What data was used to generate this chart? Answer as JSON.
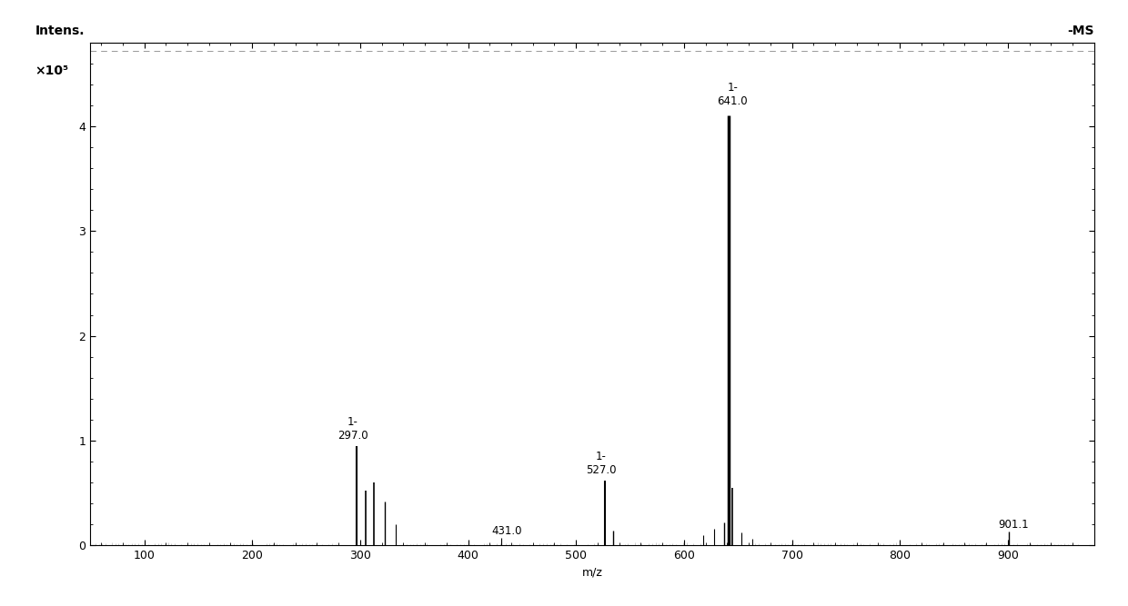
{
  "title": "-MS",
  "xlabel": "m/z",
  "xlim": [
    50,
    980
  ],
  "ylim": [
    0,
    4.8
  ],
  "xticks": [
    100,
    200,
    300,
    400,
    500,
    600,
    700,
    800,
    900
  ],
  "yticks": [
    0,
    1,
    2,
    3,
    4
  ],
  "background_color": "#ffffff",
  "peaks": [
    {
      "mz": 297.0,
      "intensity": 0.95,
      "label": "1-\n297.0",
      "labeled": true,
      "lw": 1.5
    },
    {
      "mz": 305.0,
      "intensity": 0.52,
      "label": "",
      "labeled": false,
      "lw": 1.2
    },
    {
      "mz": 313.0,
      "intensity": 0.6,
      "label": "",
      "labeled": false,
      "lw": 1.2
    },
    {
      "mz": 323.0,
      "intensity": 0.42,
      "label": "",
      "labeled": false,
      "lw": 1.0
    },
    {
      "mz": 333.0,
      "intensity": 0.2,
      "label": "",
      "labeled": false,
      "lw": 0.8
    },
    {
      "mz": 431.0,
      "intensity": 0.07,
      "label": "431.0",
      "labeled": true,
      "lw": 0.8
    },
    {
      "mz": 527.0,
      "intensity": 0.62,
      "label": "1-\n527.0",
      "labeled": true,
      "lw": 1.5
    },
    {
      "mz": 534.0,
      "intensity": 0.14,
      "label": "",
      "labeled": false,
      "lw": 1.0
    },
    {
      "mz": 618.0,
      "intensity": 0.1,
      "label": "",
      "labeled": false,
      "lw": 0.8
    },
    {
      "mz": 628.0,
      "intensity": 0.16,
      "label": "",
      "labeled": false,
      "lw": 0.8
    },
    {
      "mz": 637.0,
      "intensity": 0.22,
      "label": "",
      "labeled": false,
      "lw": 1.0
    },
    {
      "mz": 641.0,
      "intensity": 4.1,
      "label": "1-\n641.0",
      "labeled": true,
      "lw": 2.5
    },
    {
      "mz": 645.0,
      "intensity": 0.55,
      "label": "",
      "labeled": false,
      "lw": 1.2
    },
    {
      "mz": 653.0,
      "intensity": 0.12,
      "label": "",
      "labeled": false,
      "lw": 0.8
    },
    {
      "mz": 663.0,
      "intensity": 0.06,
      "label": "",
      "labeled": false,
      "lw": 0.7
    },
    {
      "mz": 901.1,
      "intensity": 0.13,
      "label": "901.1",
      "labeled": true,
      "lw": 1.0
    }
  ],
  "line_color": "#000000",
  "label_fontsize": 8.5,
  "axis_fontsize": 9,
  "tick_fontsize": 9,
  "ylabel_fontsize": 10,
  "title_fontsize": 10
}
